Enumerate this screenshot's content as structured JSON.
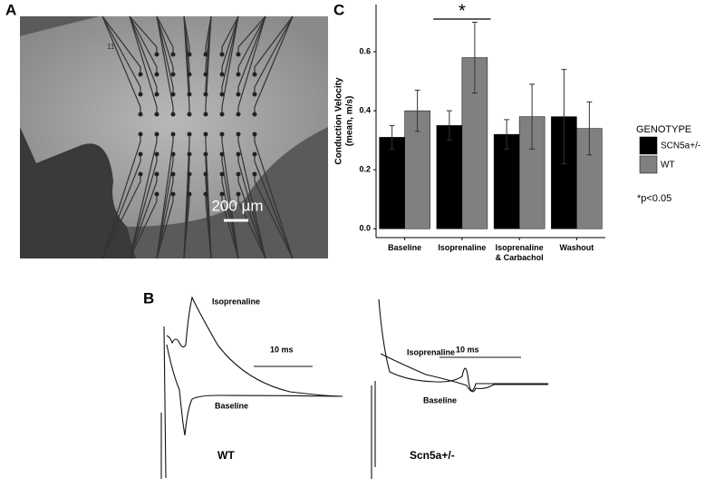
{
  "panels": {
    "a": "A",
    "b": "B",
    "c": "C"
  },
  "photo": {
    "scale_label": "200 µm",
    "electrode_label": "11"
  },
  "traces": {
    "left": {
      "upper_label": "Isoprenaline",
      "scale_label": "10 ms",
      "lower_label": "Baseline",
      "genotype_label": "WT"
    },
    "right": {
      "upper_label": "Isoprenaline",
      "scale_label": "10 ms",
      "lower_label": "Baseline",
      "genotype_label": "Scn5a+/-"
    }
  },
  "chart_data": {
    "type": "bar",
    "ylabel": [
      "Conduction Velocity",
      "(mean, m/s)"
    ],
    "categories": [
      "Baseline",
      "Isoprenaline",
      "Isoprenaline & Carbachol",
      "Washout"
    ],
    "series": [
      {
        "name": "SCN5a+/-",
        "color": "#000000",
        "values": [
          0.31,
          0.35,
          0.32,
          0.38
        ],
        "errors": [
          0.04,
          0.05,
          0.05,
          0.16
        ]
      },
      {
        "name": "WT",
        "color": "#808080",
        "values": [
          0.4,
          0.58,
          0.38,
          0.34
        ],
        "errors": [
          0.07,
          0.12,
          0.11,
          0.09
        ]
      }
    ],
    "ylim": [
      -0.03,
      0.76
    ],
    "yticks": [
      {
        "value": 0,
        "label": "0.0"
      },
      0.2,
      0.4,
      0.6
    ],
    "legend_title": "GENOTYPE",
    "legend": "right",
    "significance": {
      "category": 1,
      "label": "*"
    },
    "annotation": "*p<0.05"
  }
}
